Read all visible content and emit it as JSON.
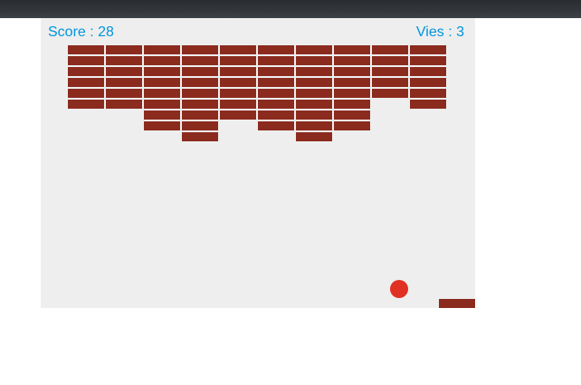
{
  "hud": {
    "score_label": "Score : ",
    "score_value": "28",
    "lives_label": "Vies : ",
    "lives_value": "3"
  },
  "colors": {
    "brick": "#8b2b1e",
    "paddle": "#8b2b1e",
    "ball": "#e03023",
    "hud_text": "#0095dd",
    "canvas_background": "#eeeeee"
  },
  "bricks": {
    "columns": 10,
    "rows": 9,
    "remaining_rows_per_column": [
      6,
      6,
      8,
      9,
      7,
      8,
      9,
      8,
      5,
      6
    ]
  }
}
